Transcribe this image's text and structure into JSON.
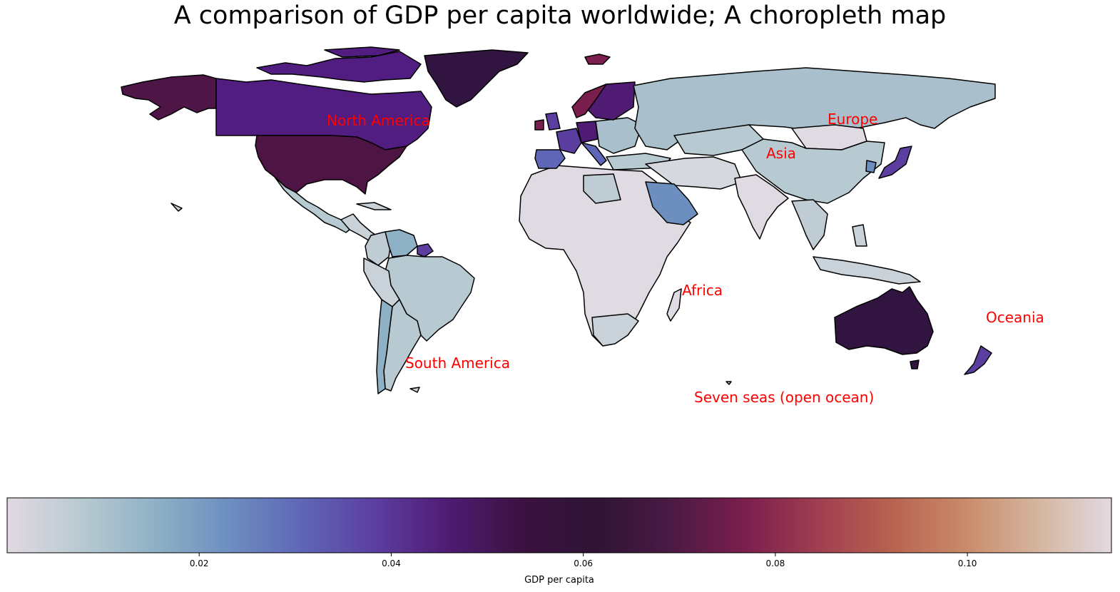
{
  "title": "A comparison of GDP per capita worldwide; A choropleth map",
  "region_labels": [
    {
      "id": "north-america",
      "text": "North America"
    },
    {
      "id": "europe",
      "text": "Europe"
    },
    {
      "id": "asia",
      "text": "Asia"
    },
    {
      "id": "africa",
      "text": "Africa"
    },
    {
      "id": "south-america",
      "text": "South America"
    },
    {
      "id": "oceania",
      "text": "Oceania"
    },
    {
      "id": "seven-seas",
      "text": "Seven seas (open ocean)"
    }
  ],
  "colors": {
    "label": "#ff0000",
    "border": "#000000",
    "ocean": "#ffffff"
  },
  "colorbar": {
    "label": "GDP per capita",
    "min": 0.0,
    "max": 0.115,
    "ticks": [
      "0.02",
      "0.04",
      "0.06",
      "0.08",
      "0.10"
    ],
    "tick_values": [
      0.02,
      0.04,
      0.06,
      0.08,
      0.1
    ],
    "colormap": "twilight",
    "stops": [
      "#e2d9e2",
      "#b8cad1",
      "#8fb1c6",
      "#6d8fc0",
      "#5f66b7",
      "#5c3ea0",
      "#4f1b73",
      "#3b1240",
      "#2f1436",
      "#4a1a44",
      "#7a1e4d",
      "#a03d51",
      "#b8624f",
      "#c98a6a",
      "#d5b59e",
      "#e2d9e2"
    ]
  },
  "chart_data": {
    "type": "choropleth",
    "title": "A comparison of GDP per capita worldwide; A choropleth map",
    "value_label": "GDP per capita",
    "range": [
      0.0,
      0.115
    ],
    "regions": [
      {
        "name": "North America",
        "countries": [
          {
            "name": "Canada",
            "value": 0.045
          },
          {
            "name": "United States",
            "value": 0.054
          },
          {
            "name": "Greenland",
            "value": 0.056
          },
          {
            "name": "Alaska",
            "value": 0.054
          },
          {
            "name": "Mexico",
            "value": 0.012
          }
        ]
      },
      {
        "name": "South America",
        "countries": [
          {
            "name": "Brazil",
            "value": 0.01
          },
          {
            "name": "Argentina",
            "value": 0.012
          },
          {
            "name": "Chile",
            "value": 0.014
          },
          {
            "name": "Venezuela",
            "value": 0.016
          }
        ]
      },
      {
        "name": "Europe",
        "countries": [
          {
            "name": "Russia",
            "value": 0.012
          },
          {
            "name": "Norway",
            "value": 0.072
          },
          {
            "name": "Sweden",
            "value": 0.05
          },
          {
            "name": "France",
            "value": 0.038
          },
          {
            "name": "Spain",
            "value": 0.03
          }
        ]
      },
      {
        "name": "Asia",
        "countries": [
          {
            "name": "China",
            "value": 0.008
          },
          {
            "name": "India",
            "value": 0.002
          },
          {
            "name": "Japan",
            "value": 0.038
          },
          {
            "name": "Saudi Arabia",
            "value": 0.022
          }
        ]
      },
      {
        "name": "Africa",
        "countries": [
          {
            "name": "Africa (most countries)",
            "value": 0.002
          }
        ]
      },
      {
        "name": "Oceania",
        "countries": [
          {
            "name": "Australia",
            "value": 0.056
          },
          {
            "name": "New Zealand",
            "value": 0.04
          }
        ]
      }
    ]
  }
}
